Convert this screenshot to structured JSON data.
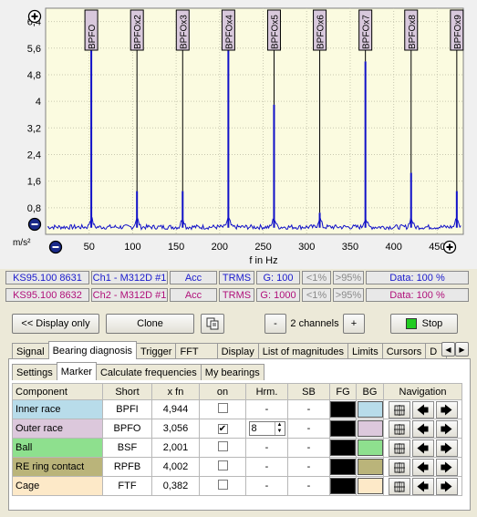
{
  "chart_data": {
    "type": "line",
    "xlabel": "f in Hz",
    "ylabel": "m/s²",
    "xlim": [
      0,
      480
    ],
    "ylim": [
      0,
      6.8
    ],
    "x_ticks": [
      "50",
      "100",
      "150",
      "200",
      "250",
      "300",
      "350",
      "400",
      "450"
    ],
    "y_ticks": [
      "0,8",
      "1,6",
      "2,4",
      "3,2",
      "4",
      "4,8",
      "5,6",
      "6,4"
    ],
    "grid": true,
    "markers": [
      {
        "label": "BPFO",
        "x": 52.5
      },
      {
        "label": "BPFOx2",
        "x": 105
      },
      {
        "label": "BPFOx3",
        "x": 157.5
      },
      {
        "label": "BPFOx4",
        "x": 210
      },
      {
        "label": "BPFOx5",
        "x": 262.5
      },
      {
        "label": "BPFOx6",
        "x": 315
      },
      {
        "label": "BPFOx7",
        "x": 367.5
      },
      {
        "label": "BPFOx8",
        "x": 420
      },
      {
        "label": "BPFOx9",
        "x": 472.5
      }
    ],
    "peaks": [
      {
        "x": 52.5,
        "y": 6.6
      },
      {
        "x": 105,
        "y": 1.3
      },
      {
        "x": 157.5,
        "y": 1.3
      },
      {
        "x": 210,
        "y": 5.8
      },
      {
        "x": 262.5,
        "y": 3.9
      },
      {
        "x": 315,
        "y": 0.65
      },
      {
        "x": 367.5,
        "y": 5.2
      },
      {
        "x": 420,
        "y": 1.85
      },
      {
        "x": 472.5,
        "y": 1.3
      }
    ],
    "noise_floor": 0.15
  },
  "channels": [
    {
      "serial": "KS95.100 8631",
      "channel": "Ch1 - M312D #1",
      "type": "Acc",
      "mode": "TRMS",
      "gain": "G: 100",
      "low": "<1%",
      "high": ">95%",
      "data": "Data: 100 %"
    },
    {
      "serial": "KS95.100 8632",
      "channel": "Ch2 - M312D #1",
      "type": "Acc",
      "mode": "TRMS",
      "gain": "G: 1000",
      "low": "<1%",
      "high": ">95%",
      "data": "Data: 100 %"
    }
  ],
  "toolbar": {
    "display_only": "<< Display only",
    "clone": "Clone",
    "minus": "-",
    "channels": "2 channels",
    "plus": "+",
    "stop": "Stop"
  },
  "tabs": [
    "Signal",
    "Bearing diagnosis",
    "Trigger",
    "FFT",
    "Display",
    "List of magnitudes",
    "Limits",
    "Cursors",
    "D"
  ],
  "subtabs": [
    "Settings",
    "Marker",
    "Calculate frequencies",
    "My bearings"
  ],
  "table": {
    "headers": [
      "Component",
      "Short",
      "x fn",
      "on",
      "Hrm.",
      "SB",
      "FG",
      "BG",
      "Navigation"
    ],
    "rows": [
      {
        "component": "Inner race",
        "short": "BPFI",
        "xfn": "4,944",
        "on": "",
        "hrm": "-",
        "sb": "-",
        "bg": "#b8dcea"
      },
      {
        "component": "Outer race",
        "short": "BPFO",
        "xfn": "3,056",
        "on": "✔",
        "hrm": "8",
        "sb": "-",
        "bg": "#dcc8dc"
      },
      {
        "component": "Ball",
        "short": "BSF",
        "xfn": "2,001",
        "on": "",
        "hrm": "-",
        "sb": "-",
        "bg": "#8ee08e"
      },
      {
        "component": "RE ring contact",
        "short": "RPFB",
        "xfn": "4,002",
        "on": "",
        "hrm": "-",
        "sb": "-",
        "bg": "#bab47a"
      },
      {
        "component": "Cage",
        "short": "FTF",
        "xfn": "0,382",
        "on": "",
        "hrm": "-",
        "sb": "-",
        "bg": "#fde9c8"
      }
    ]
  },
  "colors": {
    "plot_bg": "#fbfbe0",
    "trace": "#1010c8",
    "marker_label_bg": "#d8c8dc",
    "fg_swatch": "#000000"
  }
}
